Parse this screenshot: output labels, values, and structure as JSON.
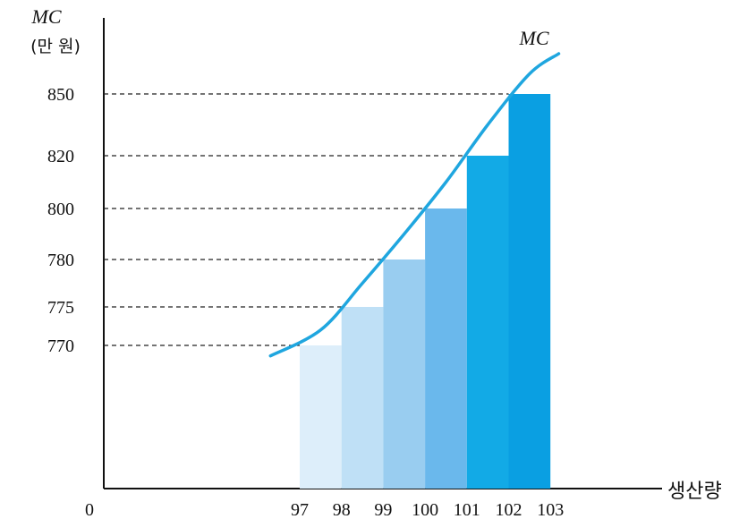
{
  "chart_data": {
    "type": "bar",
    "title": "",
    "ylabel": "MC",
    "ylabel_unit": "(만 원)",
    "xlabel": "생산량",
    "origin_label": "0",
    "x_ticks": [
      "97",
      "98",
      "99",
      "100",
      "101",
      "102",
      "103"
    ],
    "y_ticks": [
      770,
      775,
      780,
      800,
      820,
      850
    ],
    "y_tick_labels": [
      "770",
      "775",
      "780",
      "800",
      "820",
      "850"
    ],
    "bars": [
      {
        "from": "97",
        "to": "98",
        "value": 770
      },
      {
        "from": "98",
        "to": "99",
        "value": 775
      },
      {
        "from": "99",
        "to": "100",
        "value": 780
      },
      {
        "from": "100",
        "to": "101",
        "value": 800
      },
      {
        "from": "101",
        "to": "102",
        "value": 820
      },
      {
        "from": "102",
        "to": "103",
        "value": 850
      }
    ],
    "curve": {
      "name": "MC",
      "x": [
        96.3,
        97.5,
        98.5,
        99.5,
        100.5,
        101.5,
        102.5,
        103.2
      ],
      "y": [
        767,
        772,
        777.5,
        790,
        810,
        835,
        865,
        880
      ]
    },
    "y_axis_scale": "non-uniform (ticks at labeled positions only)",
    "grid": "dashed guide lines from y-axis to each bar top",
    "colors": {
      "bar_fills": [
        "#ddeefa",
        "#bfe0f6",
        "#99cdf0",
        "#6ab8ec",
        "#12aae6",
        "#0a9fe2"
      ],
      "curve": "#1fa6df",
      "axis": "#111111",
      "guides": "#222222"
    }
  }
}
